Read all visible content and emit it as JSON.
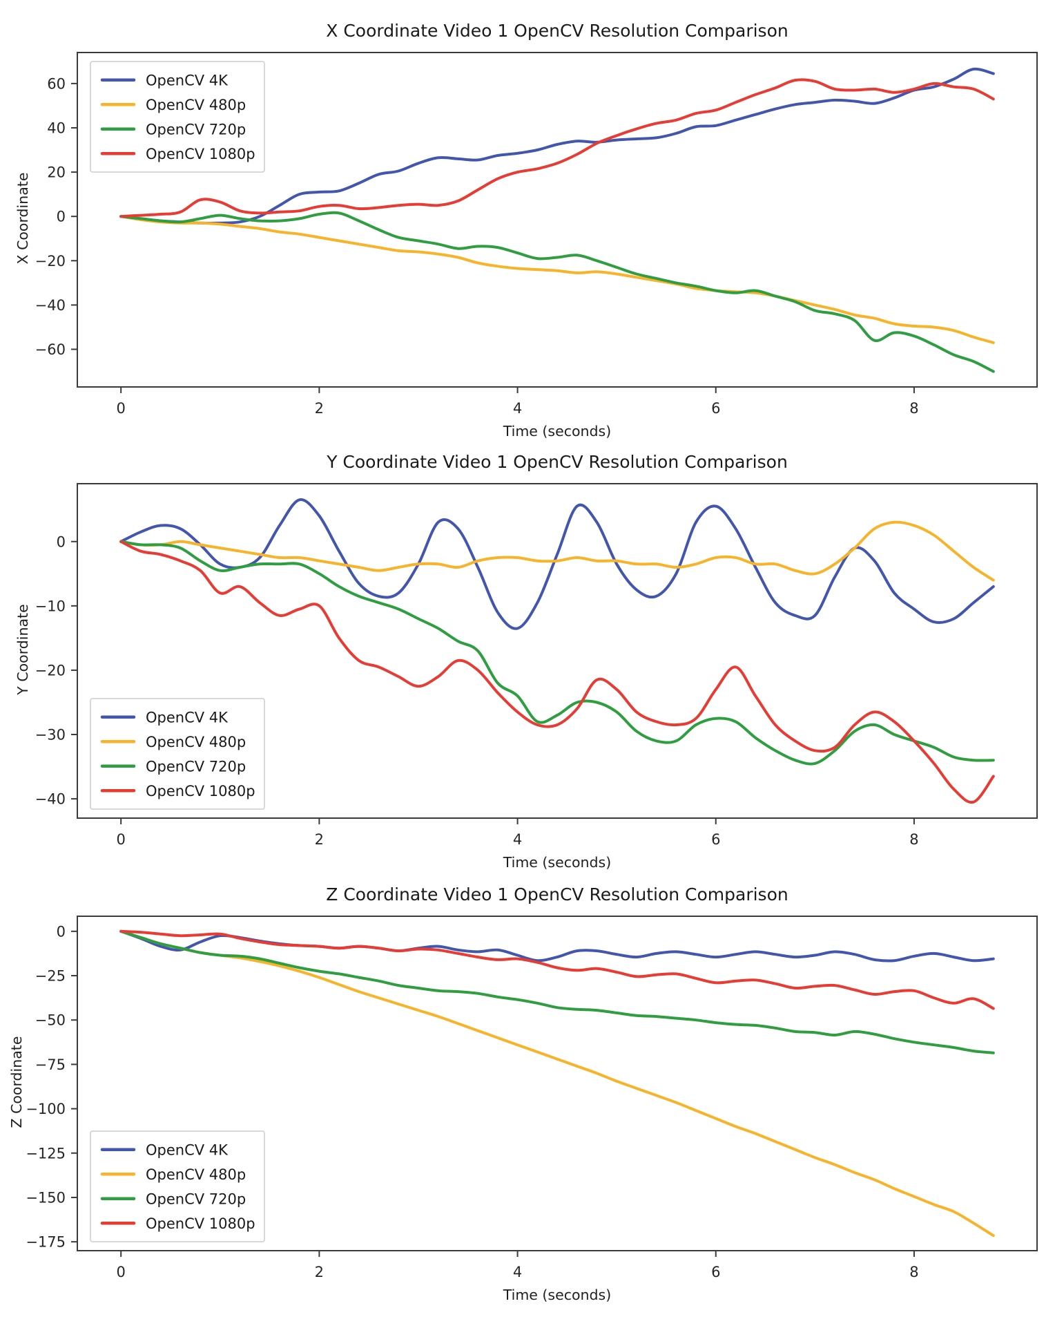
{
  "page": {
    "background": "#ffffff"
  },
  "chart_data": [
    {
      "type": "line",
      "title": "X Coordinate Video 1 OpenCV Resolution Comparison",
      "xlabel": "Time (seconds)",
      "ylabel": "X Coordinate",
      "x_start": 0,
      "x_step": 0.2,
      "xlim": [
        -0.44,
        9.24
      ],
      "ylim": [
        -77,
        74
      ],
      "xticks": [
        0,
        2,
        4,
        6,
        8
      ],
      "yticks": [
        60,
        40,
        20,
        0,
        -20,
        -40,
        -60
      ],
      "grid": false,
      "legend": {
        "position": "upper-left"
      },
      "series": [
        {
          "name": "OpenCV 4K",
          "color": "#4356ad",
          "values": [
            0,
            -1,
            -2,
            -2.5,
            -3,
            -3,
            -2.5,
            0,
            5,
            10,
            11,
            11.5,
            15,
            19,
            20.5,
            24,
            26.5,
            26,
            25.5,
            27.5,
            28.5,
            30,
            32.5,
            34,
            33.5,
            34.5,
            35,
            35.5,
            37.5,
            40.5,
            41,
            43.5,
            46,
            48.5,
            50.5,
            51.5,
            52.5,
            52,
            51,
            53.5,
            57,
            58.5,
            62,
            66.5,
            64.5
          ]
        },
        {
          "name": "OpenCV 480p",
          "color": "#f7b32a",
          "values": [
            0,
            -1.5,
            -2.5,
            -3,
            -3,
            -3.5,
            -4.5,
            -5.5,
            -7,
            -8,
            -9.5,
            -11,
            -12.5,
            -14,
            -15.5,
            -16,
            -17,
            -18.5,
            -21,
            -22.5,
            -23.5,
            -24,
            -24.5,
            -25.5,
            -25,
            -26,
            -27.5,
            -29,
            -30.5,
            -32.5,
            -33.5,
            -34,
            -34.5,
            -36,
            -38,
            -40,
            -42,
            -44.5,
            -46,
            -48.5,
            -49.5,
            -50,
            -51.5,
            -54.5,
            -57
          ]
        },
        {
          "name": "OpenCV 720p",
          "color": "#2e9e40",
          "values": [
            0,
            -1,
            -2,
            -2.5,
            -1,
            0.5,
            -1,
            -2,
            -2,
            -1,
            1,
            1.5,
            -2,
            -6,
            -9.5,
            -11,
            -12.5,
            -14.5,
            -13.5,
            -14,
            -16.5,
            -19,
            -18.5,
            -17.5,
            -20,
            -23,
            -26,
            -28,
            -30,
            -31.5,
            -33.5,
            -34.5,
            -33.5,
            -36,
            -38.5,
            -42.5,
            -44,
            -47,
            -56,
            -52.5,
            -54,
            -58,
            -62.5,
            -65.5,
            -70
          ]
        },
        {
          "name": "OpenCV 1080p",
          "color": "#e63c34",
          "values": [
            0,
            0.5,
            1,
            2,
            7.5,
            6.5,
            2.5,
            1.5,
            2,
            2.5,
            4.5,
            5,
            3.5,
            4,
            5,
            5.5,
            5,
            7,
            12,
            17,
            20,
            21.5,
            24,
            28,
            33,
            36.5,
            39.5,
            42,
            43.5,
            46.5,
            48,
            51.5,
            55,
            58,
            61.5,
            61,
            57.5,
            57,
            57.5,
            56,
            57.5,
            60,
            58.5,
            57.5,
            53
          ]
        }
      ]
    },
    {
      "type": "line",
      "title": "Y Coordinate Video 1 OpenCV Resolution Comparison",
      "xlabel": "Time (seconds)",
      "ylabel": "Y Coordinate",
      "x_start": 0,
      "x_step": 0.2,
      "xlim": [
        -0.44,
        9.24
      ],
      "ylim": [
        -43,
        9
      ],
      "xticks": [
        0,
        2,
        4,
        6,
        8
      ],
      "yticks": [
        0,
        -10,
        -20,
        -30,
        -40
      ],
      "grid": false,
      "legend": {
        "position": "lower-left"
      },
      "series": [
        {
          "name": "OpenCV 4K",
          "color": "#4356ad",
          "values": [
            0,
            1.5,
            2.5,
            2,
            -0.5,
            -3.5,
            -4,
            -2.5,
            2.5,
            6.5,
            4,
            -1.5,
            -6.5,
            -8.5,
            -8,
            -3.5,
            3,
            2,
            -4,
            -11,
            -13.5,
            -9.5,
            -2,
            5.5,
            3,
            -3.5,
            -7.5,
            -8.5,
            -5,
            3,
            5.5,
            2,
            -4,
            -9.5,
            -11.5,
            -11.5,
            -5.5,
            -1,
            -3,
            -8,
            -10.5,
            -12.5,
            -12,
            -9.5,
            -7
          ]
        },
        {
          "name": "OpenCV 480p",
          "color": "#f7b32a",
          "values": [
            0,
            -0.5,
            -0.5,
            0,
            -0.5,
            -1,
            -1.5,
            -2,
            -2.5,
            -2.5,
            -3,
            -3.5,
            -4,
            -4.5,
            -4,
            -3.5,
            -3.5,
            -4,
            -3,
            -2.5,
            -2.5,
            -3,
            -3,
            -2.5,
            -3,
            -3,
            -3.5,
            -3.5,
            -4,
            -3.5,
            -2.5,
            -2.5,
            -3.5,
            -3.5,
            -4.5,
            -5,
            -3.5,
            -1,
            2,
            3,
            2.5,
            1,
            -1.5,
            -4,
            -6
          ]
        },
        {
          "name": "OpenCV 720p",
          "color": "#2e9e40",
          "values": [
            0,
            -0.5,
            -0.5,
            -1,
            -3,
            -4.5,
            -4,
            -3.5,
            -3.5,
            -3.5,
            -5,
            -7,
            -8.5,
            -9.5,
            -10.5,
            -12,
            -13.5,
            -15.5,
            -17,
            -22,
            -24,
            -28,
            -27,
            -25,
            -25,
            -26.5,
            -29.5,
            -31,
            -31,
            -28.5,
            -27.5,
            -28,
            -30.5,
            -32.5,
            -34,
            -34.5,
            -32.5,
            -29.5,
            -28.5,
            -30,
            -31,
            -32,
            -33.5,
            -34,
            -34
          ]
        },
        {
          "name": "OpenCV 1080p",
          "color": "#e63c34",
          "values": [
            0,
            -1.5,
            -2,
            -3,
            -4.5,
            -8,
            -7,
            -9.5,
            -11.5,
            -10.5,
            -10,
            -15,
            -18.5,
            -19.5,
            -21,
            -22.5,
            -21,
            -18.5,
            -20,
            -23.5,
            -26.5,
            -28.5,
            -28.5,
            -26,
            -21.5,
            -23,
            -26.5,
            -28,
            -28.5,
            -27.5,
            -23,
            -19.5,
            -24,
            -28.5,
            -31,
            -32.5,
            -32,
            -28.5,
            -26.5,
            -28,
            -31,
            -34.5,
            -38.5,
            -40.5,
            -36.5
          ]
        }
      ]
    },
    {
      "type": "line",
      "title": "Z Coordinate Video 1 OpenCV Resolution Comparison",
      "xlabel": "Time (seconds)",
      "ylabel": "Z Coordinate",
      "x_start": 0,
      "x_step": 0.2,
      "xlim": [
        -0.44,
        9.24
      ],
      "ylim": [
        -180,
        8.5
      ],
      "xticks": [
        0,
        2,
        4,
        6,
        8
      ],
      "yticks": [
        0,
        -25,
        -50,
        -75,
        -100,
        -125,
        -150,
        -175
      ],
      "grid": false,
      "legend": {
        "position": "lower-left"
      },
      "series": [
        {
          "name": "OpenCV 4K",
          "color": "#4356ad",
          "values": [
            0,
            -4,
            -8.5,
            -10.5,
            -6,
            -2.5,
            -3.5,
            -5.5,
            -7,
            -8,
            -8.5,
            -9.5,
            -8.5,
            -9.5,
            -11,
            -9.5,
            -8.5,
            -10.5,
            -11.5,
            -10.5,
            -13.5,
            -16.5,
            -14.5,
            -11,
            -11,
            -13,
            -14.5,
            -12.5,
            -11.5,
            -13,
            -14.5,
            -13,
            -11.5,
            -13,
            -14.5,
            -13.5,
            -11.5,
            -13,
            -16,
            -16.5,
            -14,
            -12.5,
            -14.5,
            -16.5,
            -15.5
          ]
        },
        {
          "name": "OpenCV 480p",
          "color": "#f7b32a",
          "values": [
            0,
            -3.5,
            -7,
            -9.5,
            -12,
            -13.5,
            -15,
            -17,
            -19.5,
            -22.5,
            -26,
            -30,
            -34,
            -37.5,
            -41,
            -44.5,
            -48,
            -52,
            -56,
            -60,
            -64,
            -68,
            -72,
            -76,
            -80,
            -84.5,
            -88.5,
            -92.5,
            -96.5,
            -101,
            -105.5,
            -110,
            -114,
            -118.5,
            -123,
            -127.5,
            -131.5,
            -136,
            -140,
            -145,
            -149.5,
            -154,
            -158,
            -164.5,
            -171.5
          ]
        },
        {
          "name": "OpenCV 720p",
          "color": "#2e9e40",
          "values": [
            0,
            -3.5,
            -7,
            -9.5,
            -12,
            -13.5,
            -14,
            -15.5,
            -18,
            -20.5,
            -22.5,
            -24,
            -26,
            -28,
            -30.5,
            -32,
            -33.5,
            -34,
            -35,
            -37,
            -38.5,
            -40.5,
            -43,
            -44,
            -44.5,
            -46,
            -47.5,
            -48,
            -49,
            -50,
            -51.5,
            -52.5,
            -53,
            -54.5,
            -56.5,
            -57,
            -58.5,
            -56.5,
            -58,
            -60.5,
            -62.5,
            -64,
            -65.5,
            -67.5,
            -68.5
          ]
        },
        {
          "name": "OpenCV 1080p",
          "color": "#e63c34",
          "values": [
            0,
            -0.5,
            -1.5,
            -2.5,
            -2,
            -1.5,
            -4,
            -6,
            -7.5,
            -8,
            -8.5,
            -9.5,
            -8.5,
            -9.5,
            -11,
            -10,
            -10.5,
            -12.5,
            -14.5,
            -16,
            -15.5,
            -17.5,
            -20.5,
            -22,
            -21,
            -23,
            -25.5,
            -24.5,
            -24,
            -26.5,
            -29,
            -28,
            -27.5,
            -29.5,
            -32,
            -31,
            -30.5,
            -33,
            -35.5,
            -34,
            -33.5,
            -37.5,
            -40.5,
            -38,
            -43.5
          ]
        }
      ]
    }
  ]
}
